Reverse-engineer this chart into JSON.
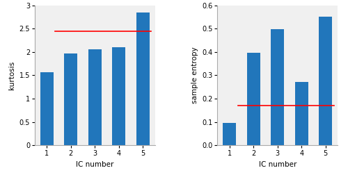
{
  "ic_numbers": [
    1,
    2,
    3,
    4,
    5
  ],
  "kurtosis_values": [
    1.57,
    1.97,
    2.05,
    2.1,
    2.85
  ],
  "kurtosis_threshold": 2.44,
  "kurtosis_ylim": [
    0,
    3.0
  ],
  "kurtosis_yticks": [
    0,
    0.5,
    1.0,
    1.5,
    2.0,
    2.5,
    3.0
  ],
  "kurtosis_ylabel": "kurtosis",
  "entropy_values": [
    0.095,
    0.397,
    0.498,
    0.27,
    0.552
  ],
  "entropy_threshold": 0.17,
  "entropy_ylim": [
    0,
    0.6
  ],
  "entropy_yticks": [
    0,
    0.1,
    0.2,
    0.3,
    0.4,
    0.5,
    0.6
  ],
  "entropy_ylabel": "sample entropy",
  "xlabel": "IC number",
  "bar_color": "#2176bb",
  "threshold_color": "red",
  "bar_width": 0.55,
  "background_color": "#f0f0f0",
  "font_size": 7,
  "label_font_size": 7.5
}
